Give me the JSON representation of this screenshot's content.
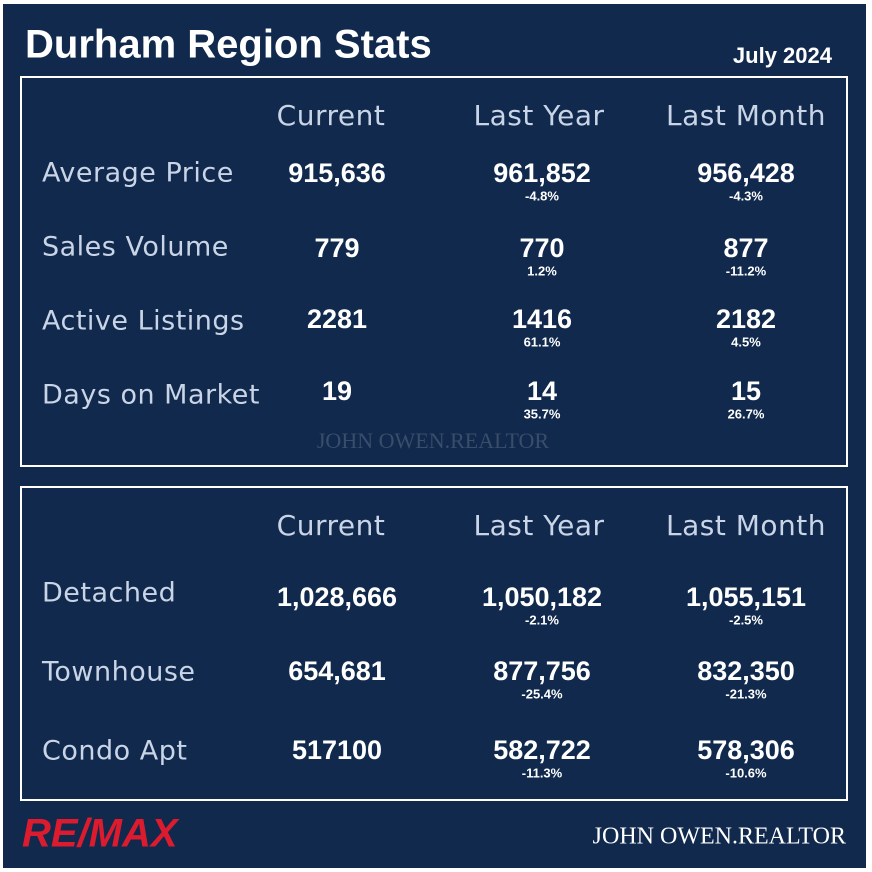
{
  "header": {
    "title": "Durham Region Stats",
    "date": "July 2024"
  },
  "tables": [
    {
      "columns": [
        "Current",
        "Last Year",
        "Last Month"
      ],
      "rows": [
        {
          "label": "Average Price",
          "cells": [
            {
              "value": "915,636"
            },
            {
              "value": "961,852",
              "change": "-4.8%"
            },
            {
              "value": "956,428",
              "change": "-4.3%"
            }
          ]
        },
        {
          "label": "Sales Volume",
          "cells": [
            {
              "value": "779"
            },
            {
              "value": "770",
              "change": "1.2%"
            },
            {
              "value": "877",
              "change": "-11.2%"
            }
          ]
        },
        {
          "label": "Active Listings",
          "cells": [
            {
              "value": "2281"
            },
            {
              "value": "1416",
              "change": "61.1%"
            },
            {
              "value": "2182",
              "change": "4.5%"
            }
          ]
        },
        {
          "label": "Days on Market",
          "cells": [
            {
              "value": "19"
            },
            {
              "value": "14",
              "change": "35.7%"
            },
            {
              "value": "15",
              "change": "26.7%"
            }
          ]
        }
      ]
    },
    {
      "columns": [
        "Current",
        "Last Year",
        "Last Month"
      ],
      "rows": [
        {
          "label": "Detached",
          "cells": [
            {
              "value": "1,028,666"
            },
            {
              "value": "1,050,182",
              "change": "-2.1%"
            },
            {
              "value": "1,055,151",
              "change": "-2.5%"
            }
          ]
        },
        {
          "label": "Townhouse",
          "cells": [
            {
              "value": "654,681"
            },
            {
              "value": "877,756",
              "change": "-25.4%"
            },
            {
              "value": "832,350",
              "change": "-21.3%"
            }
          ]
        },
        {
          "label": "Condo Apt",
          "cells": [
            {
              "value": "517100"
            },
            {
              "value": "582,722",
              "change": "-11.3%"
            },
            {
              "value": "578,306",
              "change": "-10.6%"
            }
          ]
        }
      ]
    }
  ],
  "watermark": "JOHN OWEN.REALTOR",
  "footer": {
    "logo": "RE/MAX",
    "brand": "JOHN OWEN.REALTOR"
  }
}
